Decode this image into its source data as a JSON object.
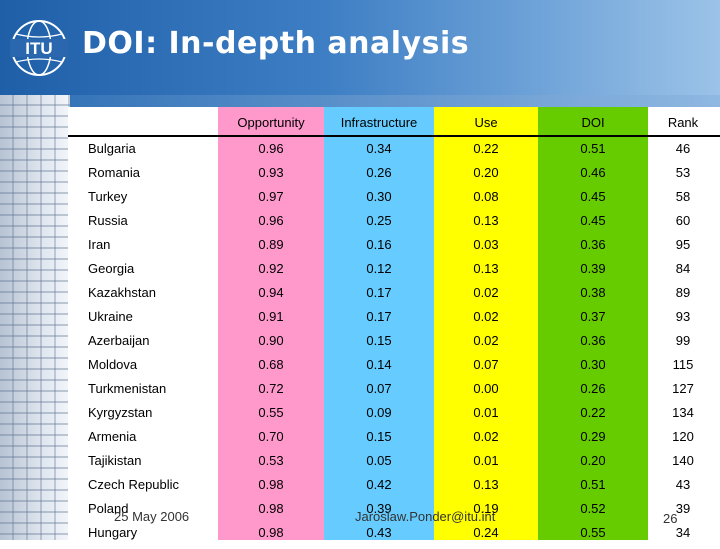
{
  "slide": {
    "title": "DOI: In-depth analysis",
    "logo_text": "ITU",
    "footer_date": "25 May 2006",
    "footer_email": "Jaroslaw.Ponder@itu.int",
    "page_number": "26"
  },
  "colors": {
    "opportunity": "#ff99cc",
    "infrastructure": "#66ccff",
    "use": "#ffff00",
    "doi": "#66cc00",
    "header": "#1f5fa8"
  },
  "table": {
    "headers": [
      "Opportunity",
      "Infrastructure",
      "Use",
      "DOI",
      "Rank"
    ],
    "rows": [
      {
        "country": "Bulgaria",
        "opportunity": "0.96",
        "infrastructure": "0.34",
        "use": "0.22",
        "doi": "0.51",
        "rank": "46"
      },
      {
        "country": "Romania",
        "opportunity": "0.93",
        "infrastructure": "0.26",
        "use": "0.20",
        "doi": "0.46",
        "rank": "53"
      },
      {
        "country": "Turkey",
        "opportunity": "0.97",
        "infrastructure": "0.30",
        "use": "0.08",
        "doi": "0.45",
        "rank": "58"
      },
      {
        "country": "Russia",
        "opportunity": "0.96",
        "infrastructure": "0.25",
        "use": "0.13",
        "doi": "0.45",
        "rank": "60"
      },
      {
        "country": "Iran",
        "opportunity": "0.89",
        "infrastructure": "0.16",
        "use": "0.03",
        "doi": "0.36",
        "rank": "95"
      },
      {
        "country": "Georgia",
        "opportunity": "0.92",
        "infrastructure": "0.12",
        "use": "0.13",
        "doi": "0.39",
        "rank": "84"
      },
      {
        "country": "Kazakhstan",
        "opportunity": "0.94",
        "infrastructure": "0.17",
        "use": "0.02",
        "doi": "0.38",
        "rank": "89"
      },
      {
        "country": "Ukraine",
        "opportunity": "0.91",
        "infrastructure": "0.17",
        "use": "0.02",
        "doi": "0.37",
        "rank": "93"
      },
      {
        "country": "Azerbaijan",
        "opportunity": "0.90",
        "infrastructure": "0.15",
        "use": "0.02",
        "doi": "0.36",
        "rank": "99"
      },
      {
        "country": "Moldova",
        "opportunity": "0.68",
        "infrastructure": "0.14",
        "use": "0.07",
        "doi": "0.30",
        "rank": "115"
      },
      {
        "country": "Turkmenistan",
        "opportunity": "0.72",
        "infrastructure": "0.07",
        "use": "0.00",
        "doi": "0.26",
        "rank": "127"
      },
      {
        "country": "Kyrgyzstan",
        "opportunity": "0.55",
        "infrastructure": "0.09",
        "use": "0.01",
        "doi": "0.22",
        "rank": "134"
      },
      {
        "country": "Armenia",
        "opportunity": "0.70",
        "infrastructure": "0.15",
        "use": "0.02",
        "doi": "0.29",
        "rank": "120"
      },
      {
        "country": "Tajikistan",
        "opportunity": "0.53",
        "infrastructure": "0.05",
        "use": "0.01",
        "doi": "0.20",
        "rank": "140"
      },
      {
        "country": "Czech Republic",
        "opportunity": "0.98",
        "infrastructure": "0.42",
        "use": "0.13",
        "doi": "0.51",
        "rank": "43"
      },
      {
        "country": "Poland",
        "opportunity": "0.98",
        "infrastructure": "0.39",
        "use": "0.19",
        "doi": "0.52",
        "rank": "39"
      },
      {
        "country": "Hungary",
        "opportunity": "0.98",
        "infrastructure": "0.43",
        "use": "0.24",
        "doi": "0.55",
        "rank": "34"
      }
    ]
  }
}
